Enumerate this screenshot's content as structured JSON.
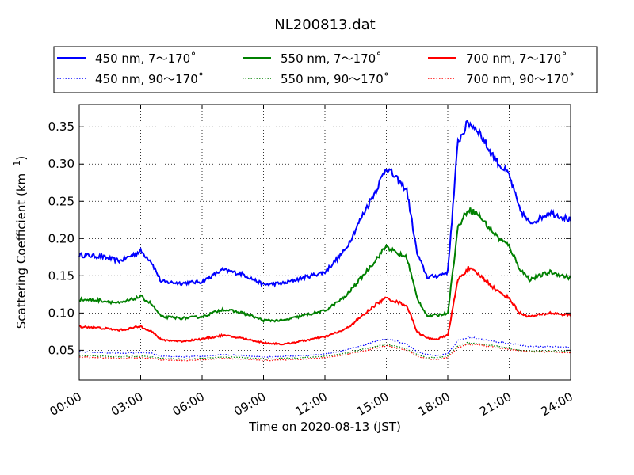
{
  "chart_data": {
    "type": "line",
    "title": "NL200813.dat",
    "xlabel": "Time on 2020-08-13 (JST)",
    "ylabel": "Scattering Coefficient (km",
    "ylabel_sup": "−1",
    "ylabel_close": ")",
    "xlim": [
      "00:00",
      "24:00"
    ],
    "ylim": [
      0.01,
      0.38
    ],
    "grid": true,
    "legend_position": "top",
    "x_ticks": [
      "00:00",
      "03:00",
      "06:00",
      "09:00",
      "12:00",
      "15:00",
      "18:00",
      "21:00",
      "24:00"
    ],
    "y_ticks": [
      "0.05",
      "0.10",
      "0.15",
      "0.20",
      "0.25",
      "0.30",
      "0.35"
    ],
    "x": [
      0,
      1,
      2,
      3,
      3.5,
      4,
      5,
      6,
      7,
      8,
      9,
      10,
      11,
      12,
      13,
      14,
      14.5,
      15,
      15.5,
      16,
      16.5,
      17,
      17.5,
      18,
      18.5,
      19,
      19.5,
      20,
      20.5,
      21,
      21.5,
      22,
      23,
      24
    ],
    "series": [
      {
        "name": "450 nm, 7～170˚",
        "color": "#0000ff",
        "style": "solid",
        "values": [
          0.178,
          0.176,
          0.17,
          0.183,
          0.17,
          0.142,
          0.14,
          0.142,
          0.158,
          0.152,
          0.138,
          0.14,
          0.148,
          0.155,
          0.185,
          0.24,
          0.265,
          0.296,
          0.28,
          0.265,
          0.18,
          0.148,
          0.15,
          0.155,
          0.33,
          0.356,
          0.345,
          0.32,
          0.3,
          0.285,
          0.24,
          0.22,
          0.235,
          0.225
        ]
      },
      {
        "name": "450 nm, 90～170˚",
        "color": "#0000ff",
        "style": "dotted",
        "values": [
          0.048,
          0.047,
          0.046,
          0.047,
          0.046,
          0.042,
          0.041,
          0.042,
          0.044,
          0.043,
          0.041,
          0.042,
          0.043,
          0.045,
          0.05,
          0.058,
          0.062,
          0.065,
          0.062,
          0.058,
          0.048,
          0.044,
          0.043,
          0.046,
          0.063,
          0.067,
          0.066,
          0.063,
          0.061,
          0.059,
          0.057,
          0.055,
          0.055,
          0.054
        ]
      },
      {
        "name": "550 nm, 7～170˚",
        "color": "#008000",
        "style": "solid",
        "values": [
          0.118,
          0.117,
          0.113,
          0.122,
          0.113,
          0.095,
          0.093,
          0.095,
          0.105,
          0.1,
          0.09,
          0.09,
          0.097,
          0.103,
          0.122,
          0.155,
          0.172,
          0.19,
          0.18,
          0.175,
          0.12,
          0.096,
          0.097,
          0.1,
          0.215,
          0.24,
          0.232,
          0.215,
          0.2,
          0.19,
          0.16,
          0.145,
          0.155,
          0.147
        ]
      },
      {
        "name": "550 nm, 90～170˚",
        "color": "#008000",
        "style": "dotted",
        "values": [
          0.043,
          0.042,
          0.041,
          0.042,
          0.041,
          0.039,
          0.038,
          0.039,
          0.041,
          0.04,
          0.038,
          0.039,
          0.04,
          0.042,
          0.046,
          0.052,
          0.055,
          0.058,
          0.055,
          0.052,
          0.044,
          0.04,
          0.04,
          0.042,
          0.056,
          0.06,
          0.059,
          0.057,
          0.055,
          0.053,
          0.05,
          0.049,
          0.049,
          0.048
        ]
      },
      {
        "name": "700 nm, 7～170˚",
        "color": "#ff0000",
        "style": "solid",
        "values": [
          0.082,
          0.08,
          0.077,
          0.082,
          0.076,
          0.064,
          0.062,
          0.065,
          0.07,
          0.066,
          0.06,
          0.058,
          0.063,
          0.068,
          0.078,
          0.1,
          0.112,
          0.12,
          0.115,
          0.11,
          0.075,
          0.066,
          0.065,
          0.07,
          0.145,
          0.16,
          0.152,
          0.14,
          0.128,
          0.12,
          0.1,
          0.095,
          0.1,
          0.097
        ]
      },
      {
        "name": "700 nm, 90～170˚",
        "color": "#ff0000",
        "style": "dotted",
        "values": [
          0.041,
          0.04,
          0.039,
          0.04,
          0.039,
          0.037,
          0.036,
          0.037,
          0.039,
          0.038,
          0.036,
          0.037,
          0.038,
          0.04,
          0.044,
          0.05,
          0.053,
          0.056,
          0.053,
          0.05,
          0.042,
          0.038,
          0.038,
          0.04,
          0.054,
          0.058,
          0.057,
          0.055,
          0.053,
          0.051,
          0.049,
          0.048,
          0.048,
          0.047
        ]
      }
    ]
  }
}
